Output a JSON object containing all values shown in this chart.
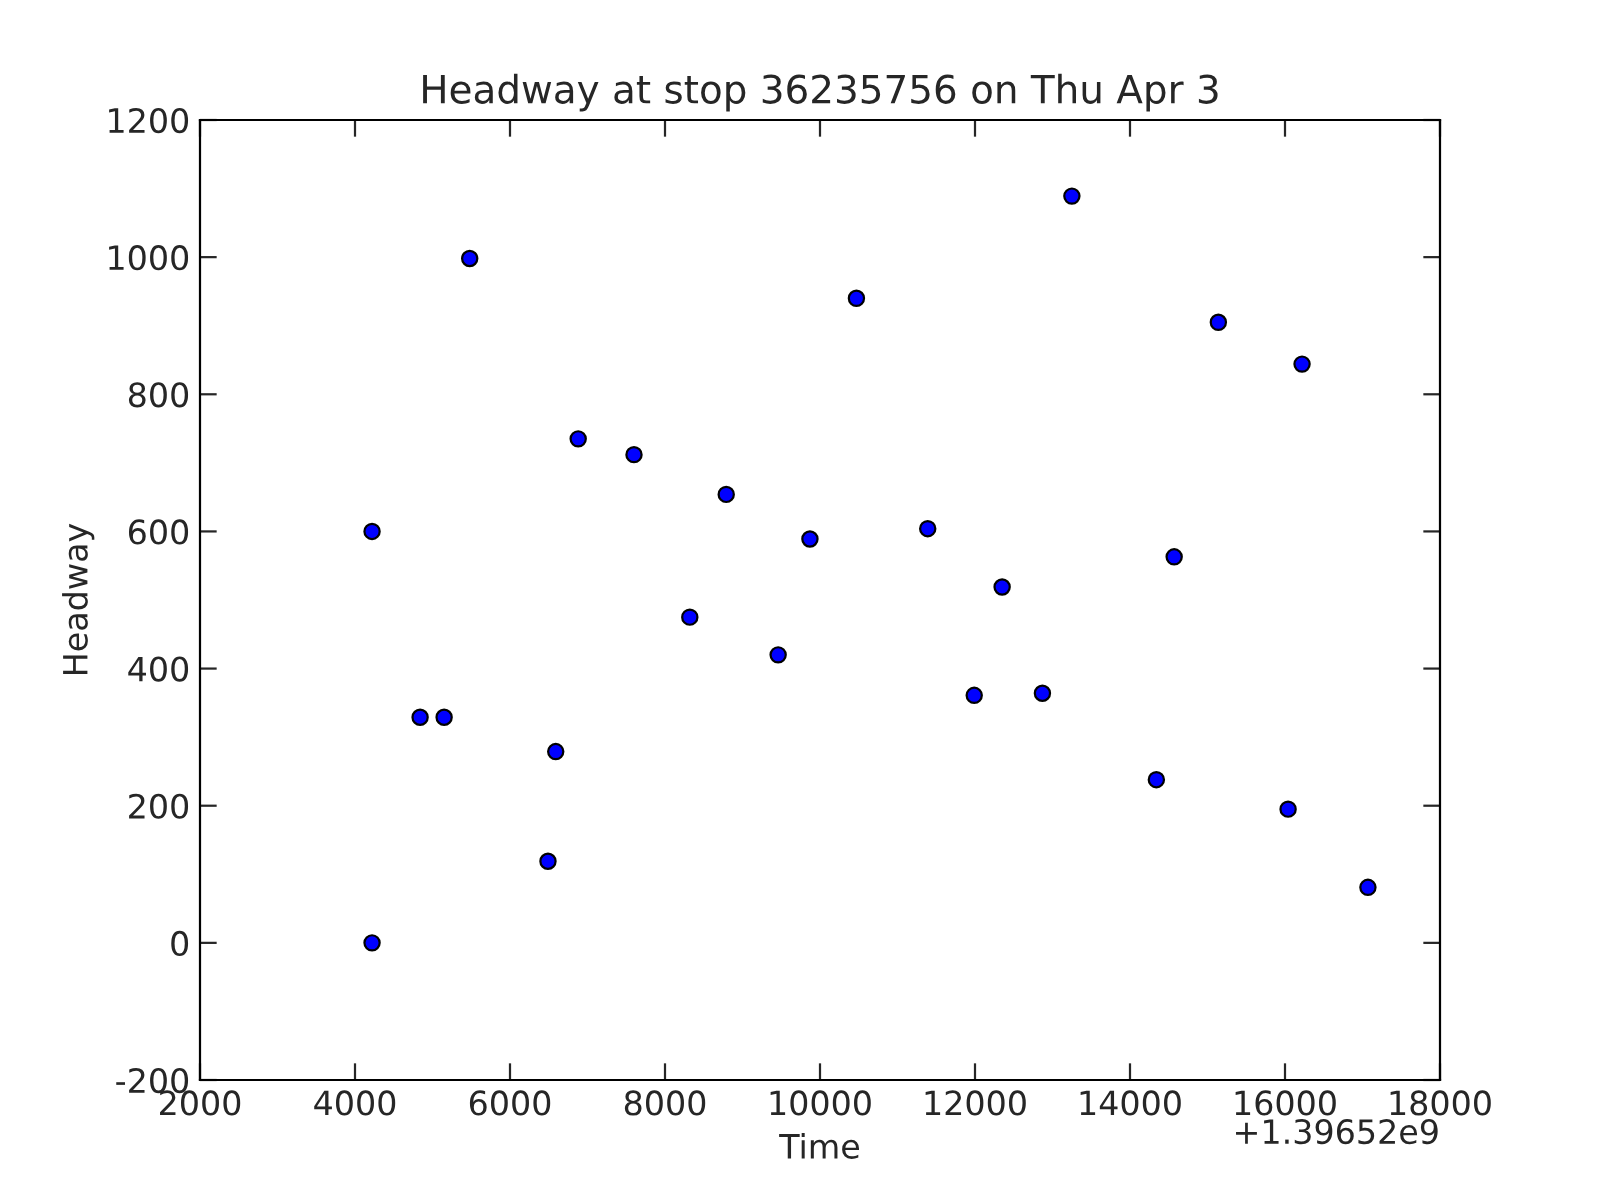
{
  "chart_data": {
    "type": "scatter",
    "title": "Headway at stop 36235756 on Thu Apr 3",
    "xlabel": "Time",
    "ylabel": "Headway",
    "annotations": [
      "+1.39652e9"
    ],
    "series": [
      {
        "color": "#0000ff",
        "x": [
          4220,
          4220,
          4840,
          5150,
          5480,
          6490,
          6590,
          6880,
          7600,
          8320,
          8790,
          9460,
          9870,
          10470,
          11390,
          11990,
          12350,
          12870,
          13250,
          14340,
          14570,
          15140,
          16040,
          16220,
          17070
        ],
        "values": [
          0,
          600,
          329,
          329,
          998,
          119,
          279,
          735,
          712,
          475,
          654,
          420,
          589,
          940,
          604,
          361,
          519,
          364,
          1089,
          238,
          563,
          905,
          195,
          844,
          81
        ]
      }
    ],
    "marker": "circle",
    "grid": false,
    "xlim": [
      2000,
      18000
    ],
    "xticks": [
      2000,
      4000,
      6000,
      8000,
      10000,
      12000,
      14000,
      16000,
      18000
    ],
    "ylim": [
      -200,
      1200
    ],
    "yticks": [
      -200,
      0,
      200,
      400,
      600,
      800,
      1000,
      1200
    ]
  }
}
